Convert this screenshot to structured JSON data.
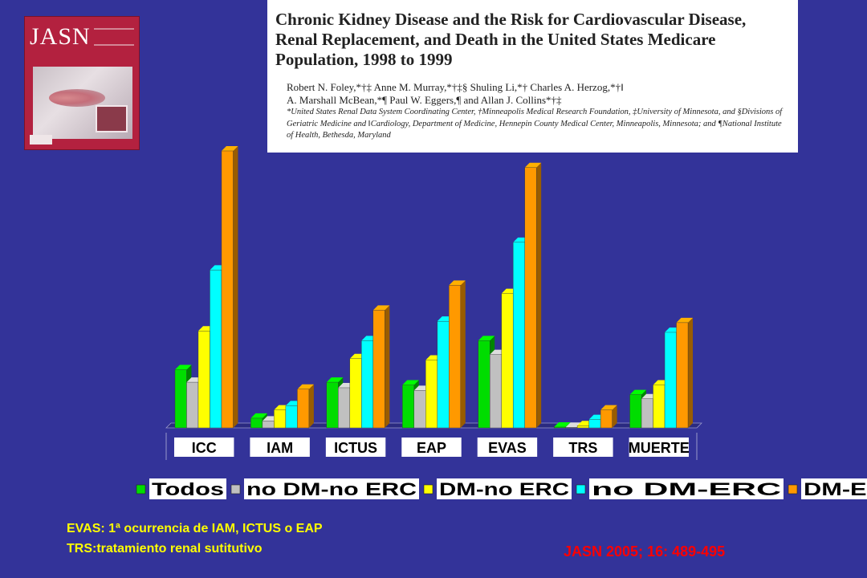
{
  "journal_cover": {
    "brand": "JASN"
  },
  "article": {
    "title": "Chronic Kidney Disease and the Risk for Cardiovascular Disease, Renal Replacement, and Death in the United States Medicare Population, 1998 to 1999",
    "authors_line1": "Robert N. Foley,*†‡ Anne M. Murray,*†‡§ Shuling Li,*† Charles A. Herzog,*†‖",
    "authors_line2": "A. Marshall McBean,*¶ Paul W. Eggers,¶ and Allan J. Collins*†‡",
    "affiliations": "*United States Renal Data System Coordinating Center, †Minneapolis Medical Research Foundation, ‡University of Minnesota, and §Divisions of Geriatric Medicine and ‖Cardiology, Department of Medicine, Hennepin County Medical Center, Minneapolis, Minnesota; and ¶National Institute of Health, Bethesda, Maryland"
  },
  "chart_data": {
    "type": "bar",
    "categories": [
      "ICC",
      "IAM",
      "ICTUS",
      "EAP",
      "EVAS",
      "TRS",
      "MUERTE"
    ],
    "series": [
      {
        "name": "Todos",
        "color": "#00dd00",
        "values": [
          21,
          3.5,
          16.5,
          15.5,
          31.5,
          0.3,
          12
        ]
      },
      {
        "name": "no DM-no ERC",
        "color": "#c0c0c0",
        "values": [
          16.5,
          2.5,
          14.5,
          13.5,
          26.5,
          0.2,
          10.5
        ]
      },
      {
        "name": "DM-no ERC",
        "color": "#ffff00",
        "values": [
          35,
          6.5,
          25,
          24.5,
          48.5,
          0.8,
          15.5
        ]
      },
      {
        "name": "no DM-ERC",
        "color": "#00ffff",
        "values": [
          57,
          8,
          31.5,
          38.5,
          67,
          3,
          34.5
        ]
      },
      {
        "name": "DM-ERC",
        "color": "#ff9900",
        "values": [
          100,
          14,
          42.5,
          51.5,
          94,
          6.5,
          38
        ]
      }
    ],
    "ylim": [
      0,
      100
    ],
    "grid": false,
    "legend_position": "bottom"
  },
  "notes": {
    "line1": "EVAS: 1ª ocurrencia de IAM, ICTUS o EAP",
    "line2": "TRS:tratamiento renal sutitutivo"
  },
  "reference": "JASN 2005; 16: 489-495"
}
